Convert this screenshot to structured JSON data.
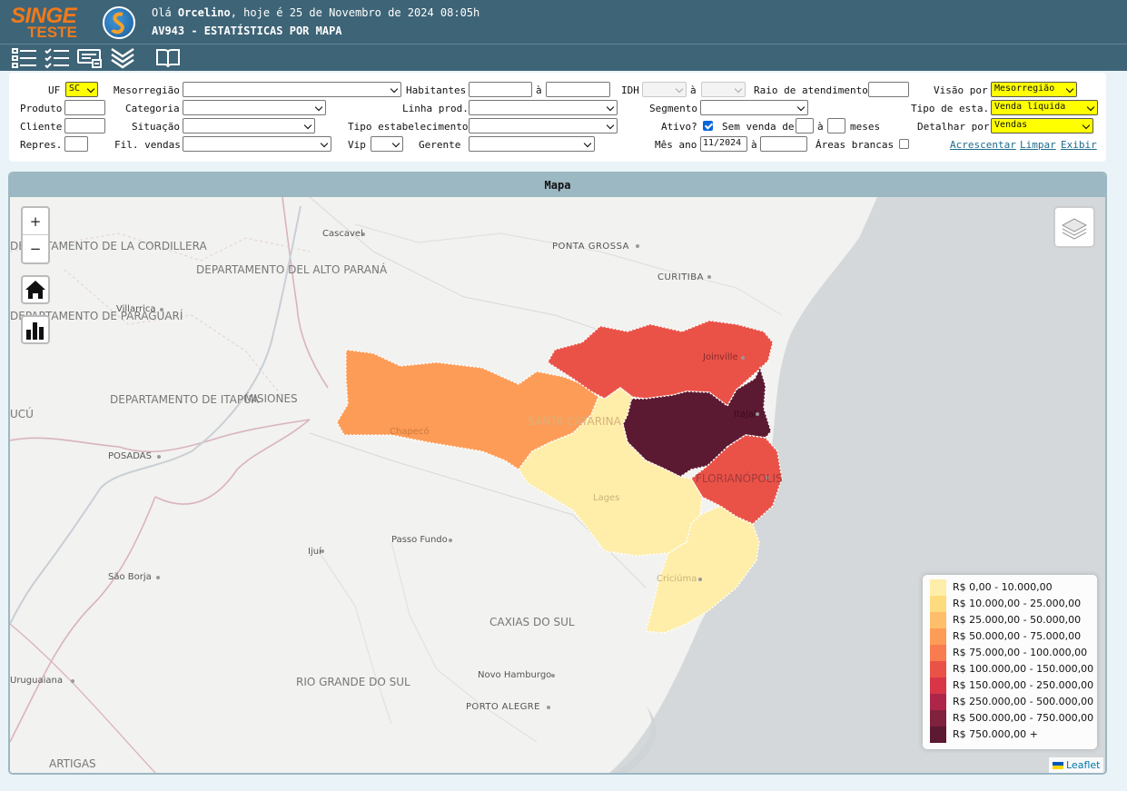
{
  "header": {
    "logo_line1": "SINGE",
    "logo_line2": "TESTE",
    "greeting_prefix": "Olá ",
    "user": "Orcelino",
    "greeting_suffix": ", hoje é 25 de Novembro de 2024 08:05h",
    "subtitle": "AV943 - ESTATÍSTICAS POR MAPA"
  },
  "toolbar": {
    "icons": [
      "list-icon",
      "checklist-icon",
      "report-icon",
      "chevrons-down-icon",
      "book-icon"
    ]
  },
  "filters": {
    "uf_label": "UF",
    "uf_value": "SC",
    "mesorregiao_label": "Mesorregião",
    "mesorregiao_value": "",
    "habitantes_label": "Habitantes",
    "ate1": "à",
    "idh_label": "IDH",
    "ate2": "à",
    "raio_label": "Raio de atendimento",
    "visao_label": "Visão por",
    "visao_value": "Mesorregião",
    "produto_label": "Produto",
    "categoria_label": "Categoria",
    "categoria_value": "",
    "linha_label": "Linha prod.",
    "linha_value": "",
    "segmento_label": "Segmento",
    "segmento_value": "",
    "tipo_esta_label": "Tipo de esta.",
    "tipo_esta_value": "Venda líquida",
    "cliente_label": "Cliente",
    "situacao_label": "Situação",
    "situacao_value": "",
    "tipo_estab_label": "Tipo estabelecimento",
    "tipo_estab_value": "",
    "ativo_label": "Ativo?",
    "ativo_checked": true,
    "sem_venda_label": "Sem venda de",
    "ate3": "à",
    "meses_label": "meses",
    "detalhar_label": "Detalhar por",
    "detalhar_value": "Vendas",
    "repres_label": "Repres.",
    "fil_vendas_label": "Fil. vendas",
    "fil_vendas_value": "",
    "vip_label": "Vip",
    "vip_value": "",
    "gerente_label": "Gerente",
    "gerente_value": "",
    "mes_ano_label": "Mês ano",
    "mes_ano_value": "11/2024",
    "ate4": "à",
    "areas_brancas_label": "Áreas brancas",
    "areas_brancas_checked": false,
    "acrescentar": "Acrescentar",
    "limpar": "Limpar",
    "exibir": "Exibir"
  },
  "map": {
    "panel_title": "Mapa",
    "zoom_in": "+",
    "zoom_out": "−",
    "attribution": "Leaflet",
    "legend": [
      {
        "label": "R$ 0,00 - 10.000,00",
        "color": "#feeeaa"
      },
      {
        "label": "R$ 10.000,00 - 25.000,00",
        "color": "#fedc7e"
      },
      {
        "label": "R$ 25.000,00 - 50.000,00",
        "color": "#febe6a"
      },
      {
        "label": "R$ 50.000,00 - 75.000,00",
        "color": "#fd9c57"
      },
      {
        "label": "R$ 75.000,00 - 100.000,00",
        "color": "#f97b50"
      },
      {
        "label": "R$ 100.000,00 - 150.000,00",
        "color": "#ea5248"
      },
      {
        "label": "R$ 150.000,00 - 250.000,00",
        "color": "#d83547"
      },
      {
        "label": "R$ 250.000,00 - 500.000,00",
        "color": "#ad2649"
      },
      {
        "label": "R$ 500.000,00 - 750.000,00",
        "color": "#80213d"
      },
      {
        "label": "R$ 750.000,00 +",
        "color": "#5c1932"
      }
    ],
    "places": {
      "cascavel": "Cascavel",
      "ponta_grossa": "PONTA GROSSA",
      "curitiba": "CURITIBA",
      "dep_cordillera": "DEPARTAMENTO DE LA CORDILLERA",
      "dep_alto_parana": "DEPARTAMENTO DEL ALTO PARANÁ",
      "villarrica": "Villarrica",
      "dep_paraguari": "DEPARTAMENTO DE PARAGUARÍ",
      "dep_itapua": "DEPARTAMENTO DE ITAPÚA",
      "misiones": "MISIONES",
      "posadas": "POSADAS",
      "joinville": "Joinville",
      "itajai": "Itajaí",
      "chapeco": "Chapecó",
      "santa_catarina": "SANTA CATARINA",
      "florianopolis": "FLORIANÓPOLIS",
      "lages": "Lages",
      "passo_fundo": "Passo Fundo",
      "ijui": "Ijuí",
      "sao_borja": "São Borja",
      "criciuma": "Criciúma",
      "caxias": "CAXIAS DO SUL",
      "uruguaiana": "Uruguaiana",
      "rio_grande_sul": "RIO GRANDE DO SUL",
      "novo_hamburgo": "Novo Hamburgo",
      "porto_alegre": "PORTO ALEGRE",
      "artigas": "ARTIGAS",
      "ucu": "UCÚ"
    }
  }
}
